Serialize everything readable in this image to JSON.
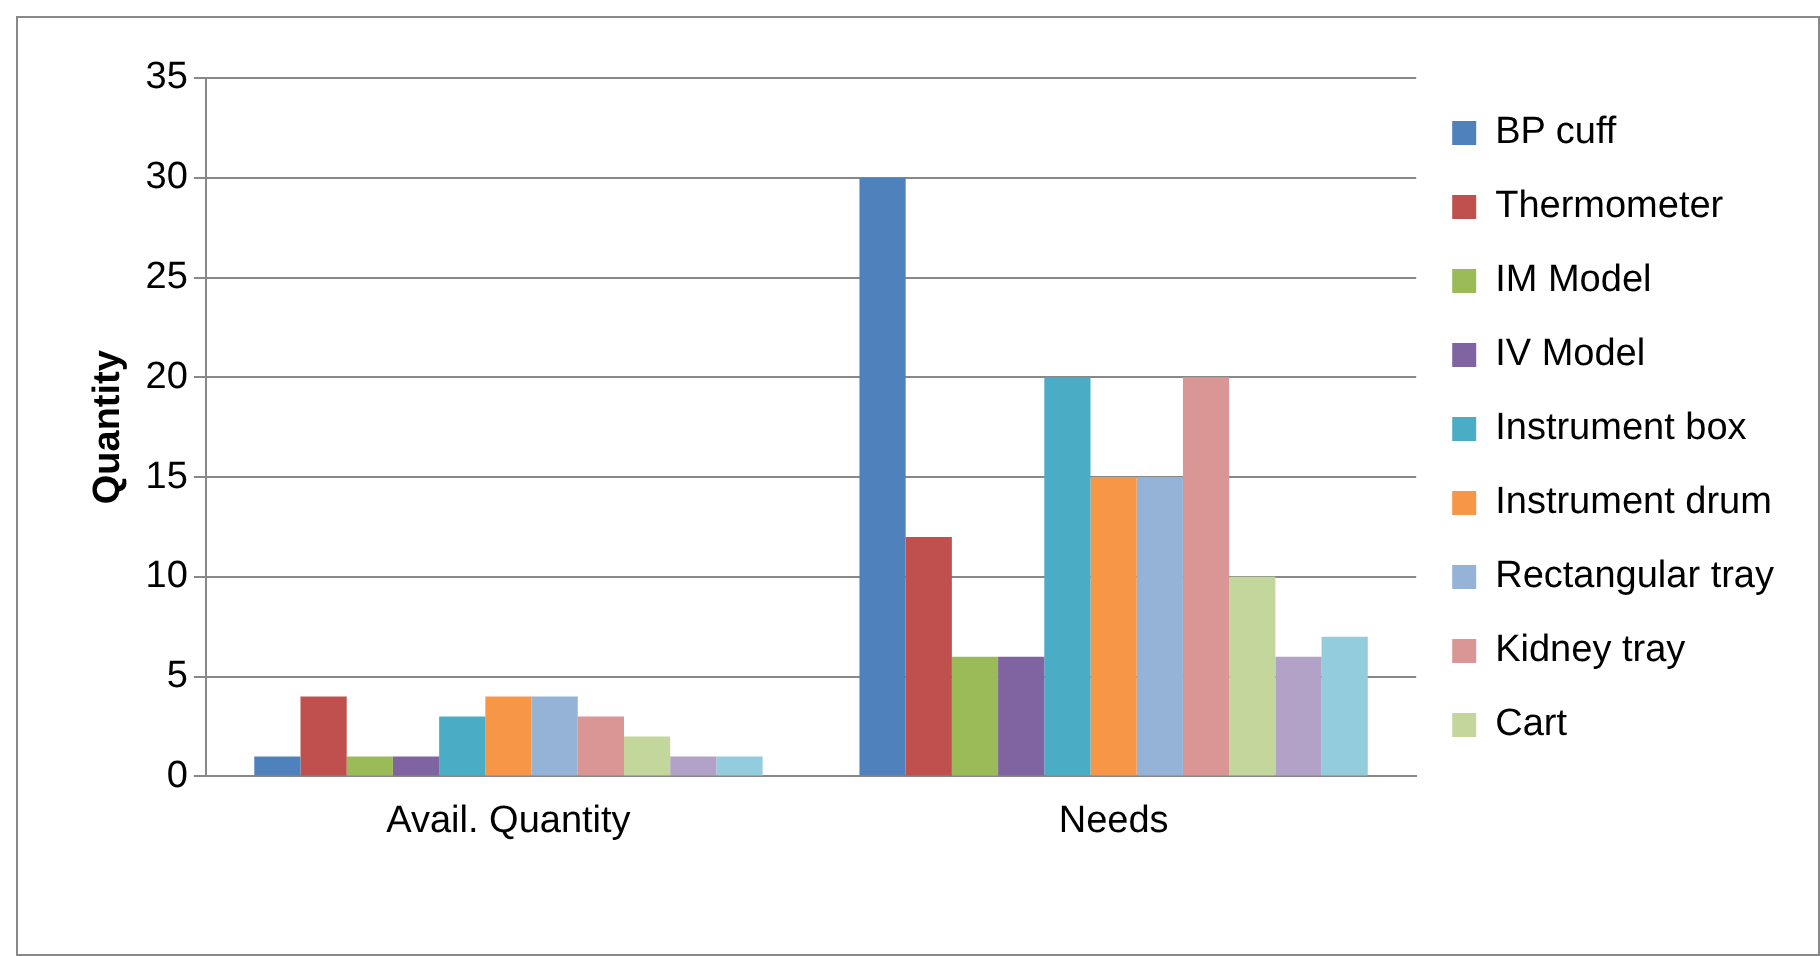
{
  "chart_data": {
    "type": "bar",
    "ylabel": "Quantity",
    "categories": [
      "Avail. Quantity",
      "Needs"
    ],
    "series": [
      {
        "name": "BP cuff",
        "color": "#4f81bd",
        "values": [
          1,
          30
        ]
      },
      {
        "name": "Thermometer",
        "color": "#c0504d",
        "values": [
          4,
          12
        ]
      },
      {
        "name": "IM Model",
        "color": "#9bbb59",
        "values": [
          1,
          6
        ]
      },
      {
        "name": "IV Model",
        "color": "#8064a2",
        "values": [
          1,
          6
        ]
      },
      {
        "name": "Instrument box",
        "color": "#4bacc6",
        "values": [
          3,
          20
        ]
      },
      {
        "name": "Instrument drum",
        "color": "#f79646",
        "values": [
          4,
          15
        ]
      },
      {
        "name": "Rectangular tray",
        "color": "#95b3d7",
        "values": [
          4,
          15
        ]
      },
      {
        "name": "Kidney tray",
        "color": "#d99694",
        "values": [
          3,
          20
        ]
      },
      {
        "name": "Cart",
        "color": "#c3d69b",
        "values": [
          2,
          10
        ]
      },
      {
        "color": "#b3a2c7",
        "values": [
          1,
          6
        ]
      },
      {
        "color": "#93cddd",
        "values": [
          1,
          7
        ]
      }
    ],
    "ylim": [
      0,
      35
    ],
    "yticks": [
      0,
      5,
      10,
      15,
      20,
      25,
      30,
      35
    ],
    "grid": "y",
    "legend": "right"
  }
}
